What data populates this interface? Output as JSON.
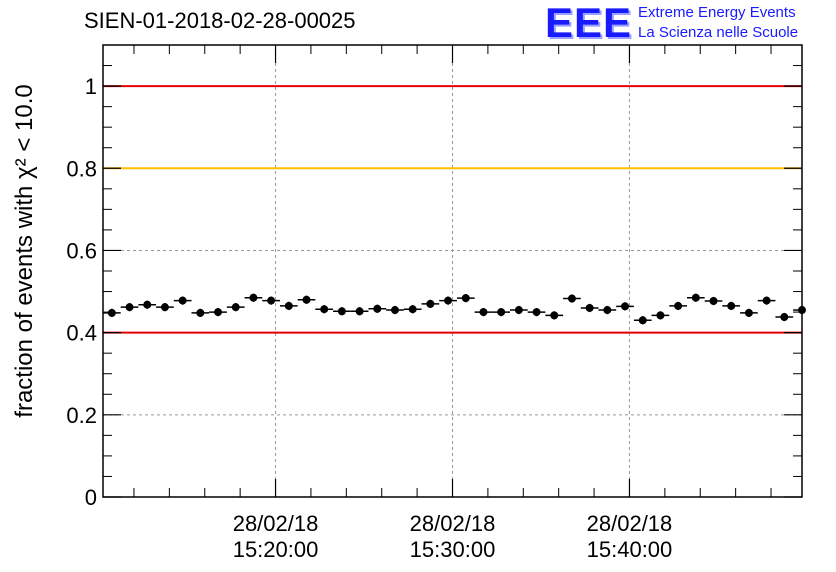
{
  "title": "SIEN-01-2018-02-28-00025",
  "logo": {
    "mark": "EEE",
    "line1": "Extreme Energy Events",
    "line2": "La Scienza nelle Scuole"
  },
  "colors": {
    "red_line": "#e00000",
    "yellow_line": "#ffc000",
    "logo": "#1a1aff"
  },
  "chart_data": {
    "type": "scatter",
    "ylabel": "fraction of events with χ² < 10.0",
    "ylim": [
      0,
      1.1
    ],
    "yticks": [
      "0",
      "0.2",
      "0.4",
      "0.6",
      "0.8",
      "1"
    ],
    "xticks": [
      {
        "date": "28/02/18",
        "time": "15:20:00"
      },
      {
        "date": "28/02/18",
        "time": "15:30:00"
      },
      {
        "date": "28/02/18",
        "time": "15:40:00"
      }
    ],
    "xlim": [
      "15:10:15",
      "15:49:45"
    ],
    "grid": true,
    "reference_lines": [
      {
        "y": 1.0,
        "color": "red"
      },
      {
        "y": 0.8,
        "color": "yellow"
      },
      {
        "y": 0.4,
        "color": "red"
      }
    ],
    "bin_width_seconds": 60,
    "x": [
      "15:10:45",
      "15:11:45",
      "15:12:45",
      "15:13:45",
      "15:14:45",
      "15:15:45",
      "15:16:45",
      "15:17:45",
      "15:18:45",
      "15:19:45",
      "15:20:45",
      "15:21:45",
      "15:22:45",
      "15:23:45",
      "15:24:45",
      "15:25:45",
      "15:26:45",
      "15:27:45",
      "15:28:45",
      "15:29:45",
      "15:30:45",
      "15:31:45",
      "15:32:45",
      "15:33:45",
      "15:34:45",
      "15:35:45",
      "15:36:45",
      "15:37:45",
      "15:38:45",
      "15:39:45",
      "15:40:45",
      "15:41:45",
      "15:42:45",
      "15:43:45",
      "15:44:45",
      "15:45:45",
      "15:46:45",
      "15:47:45",
      "15:48:45",
      "15:49:45"
    ],
    "y": [
      0.448,
      0.462,
      0.468,
      0.462,
      0.478,
      0.448,
      0.45,
      0.462,
      0.485,
      0.478,
      0.465,
      0.48,
      0.457,
      0.452,
      0.452,
      0.458,
      0.455,
      0.457,
      0.47,
      0.478,
      0.484,
      0.45,
      0.45,
      0.455,
      0.45,
      0.442,
      0.483,
      0.46,
      0.455,
      0.464,
      0.43,
      0.442,
      0.465,
      0.485,
      0.477,
      0.465,
      0.448,
      0.478,
      0.438,
      0.455
    ],
    "yerr": 0.01
  }
}
